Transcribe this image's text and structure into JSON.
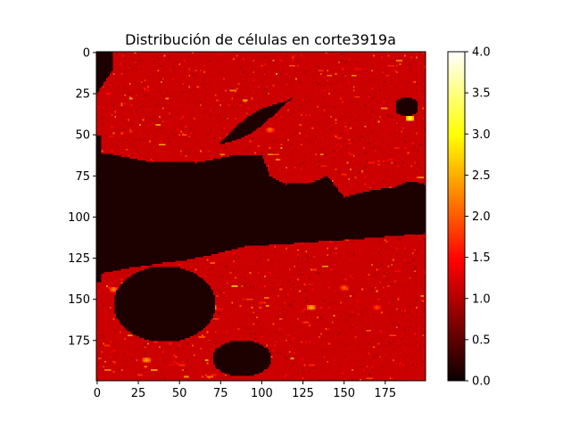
{
  "chart_data": {
    "type": "heatmap",
    "title": "Distribución de células en corte3919a",
    "xlabel": "",
    "ylabel": "",
    "grid_size": [
      200,
      200
    ],
    "xlim": [
      0,
      199
    ],
    "ylim": [
      199,
      0
    ],
    "x_ticks": [
      0,
      25,
      50,
      75,
      100,
      125,
      150,
      175
    ],
    "y_ticks": [
      0,
      25,
      50,
      75,
      100,
      125,
      150,
      175
    ],
    "colorbar": {
      "range": [
        0.0,
        4.0
      ],
      "ticks": [
        "0.0",
        "0.5",
        "1.0",
        "1.5",
        "2.0",
        "2.5",
        "3.0",
        "3.5",
        "4.0"
      ],
      "colormap": "hot"
    },
    "background_value": 1.0,
    "empty_regions": [
      {
        "name": "central-band",
        "value": 0.0
      },
      {
        "name": "upper-diagonal-crack",
        "value": 0.0
      },
      {
        "name": "lower-left-hole",
        "value": 0.0
      },
      {
        "name": "bottom-hole",
        "value": 0.0
      },
      {
        "name": "top-left-notch",
        "value": 0.0
      },
      {
        "name": "top-right-notch",
        "value": 0.0
      }
    ],
    "hotspots": [
      {
        "x": 190,
        "y": 40,
        "value": 3.2
      },
      {
        "x": 130,
        "y": 155,
        "value": 2.6
      },
      {
        "x": 70,
        "y": 155,
        "value": 2.8
      },
      {
        "x": 30,
        "y": 187,
        "value": 2.5
      },
      {
        "x": 10,
        "y": 144,
        "value": 2.3
      },
      {
        "x": 65,
        "y": 159,
        "value": 2.2
      },
      {
        "x": 105,
        "y": 47,
        "value": 2.2
      },
      {
        "x": 150,
        "y": 143,
        "value": 2.2
      },
      {
        "x": 170,
        "y": 155,
        "value": 2.0
      }
    ]
  }
}
